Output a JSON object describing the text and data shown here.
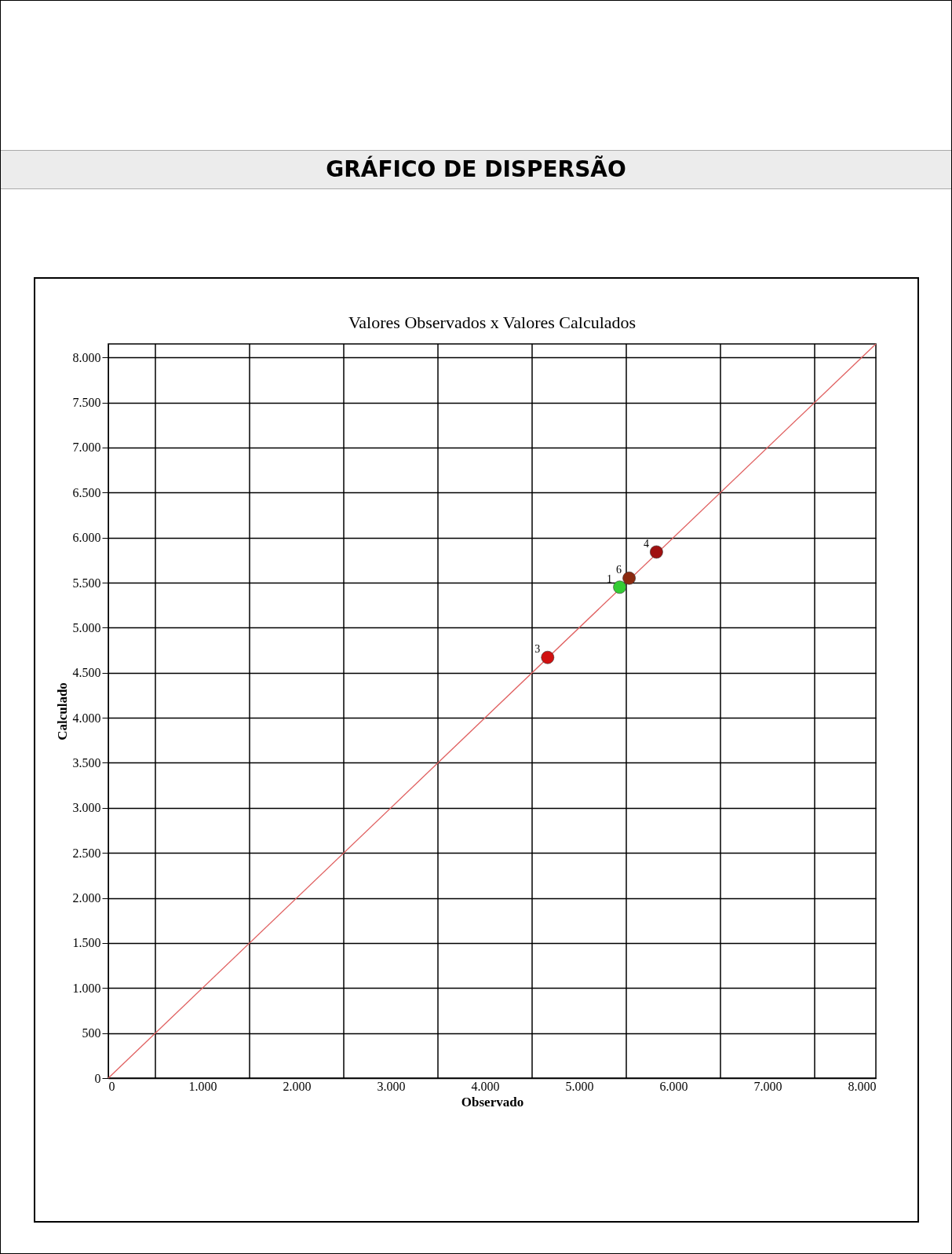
{
  "chart_data": {
    "type": "scatter",
    "title": "GRÁFICO DE DISPERSÃO",
    "subtitle": "Valores Observados x Valores Calculados",
    "xlabel": "Observado",
    "ylabel": "Calculado",
    "series": [
      {
        "type": "line",
        "color": "#e06060",
        "x": [
          0,
          8150
        ],
        "values": [
          0,
          8150
        ]
      },
      {
        "marker": "circle",
        "x": [
          5430,
          5530,
          4665,
          5820
        ],
        "values": [
          5450,
          5550,
          4670,
          5840
        ],
        "colors": [
          "#33cc33",
          "#8b2a10",
          "#d01010",
          "#a01010"
        ]
      }
    ],
    "annotations": [
      {
        "text": "1",
        "x": 5430,
        "y": 5450
      },
      {
        "text": "6",
        "x": 5530,
        "y": 5550
      },
      {
        "text": "3",
        "x": 4665,
        "y": 4670
      },
      {
        "text": "4",
        "x": 5820,
        "y": 5840
      }
    ],
    "xlim": [
      0,
      8150
    ],
    "ylim": [
      0,
      8150
    ],
    "xticks": [
      0,
      {
        "value": 500,
        "label": null
      },
      {
        "value": 1000,
        "label": "1.000"
      },
      {
        "value": 1500,
        "label": null
      },
      {
        "value": 2000,
        "label": "2.000"
      },
      {
        "value": 2500,
        "label": null
      },
      {
        "value": 3000,
        "label": "3.000"
      },
      {
        "value": 3500,
        "label": null
      },
      {
        "value": 4000,
        "label": "4.000"
      },
      {
        "value": 4500,
        "label": null
      },
      {
        "value": 5000,
        "label": "5.000"
      },
      {
        "value": 5500,
        "label": null
      },
      {
        "value": 6000,
        "label": "6.000"
      },
      {
        "value": 6500,
        "label": null
      },
      {
        "value": 7000,
        "label": "7.000"
      },
      {
        "value": 7500,
        "label": null
      },
      {
        "value": 8000,
        "label": "8.000"
      }
    ],
    "yticks": [
      0,
      500,
      {
        "value": 1000,
        "label": "1.000"
      },
      {
        "value": 1500,
        "label": "1.500"
      },
      {
        "value": 2000,
        "label": "2.000"
      },
      {
        "value": 2500,
        "label": "2.500"
      },
      {
        "value": 3000,
        "label": "3.000"
      },
      {
        "value": 3500,
        "label": "3.500"
      },
      {
        "value": 4000,
        "label": "4.000"
      },
      {
        "value": 4500,
        "label": "4.500"
      },
      {
        "value": 5000,
        "label": "5.000"
      },
      {
        "value": 5500,
        "label": "5.500"
      },
      {
        "value": 6000,
        "label": "6.000"
      },
      {
        "value": 6500,
        "label": "6.500"
      },
      {
        "value": 7000,
        "label": "7.000"
      },
      {
        "value": 7500,
        "label": "7.500"
      },
      {
        "value": 8000,
        "label": "8.000"
      }
    ],
    "grid": true,
    "line_style": "solid"
  }
}
